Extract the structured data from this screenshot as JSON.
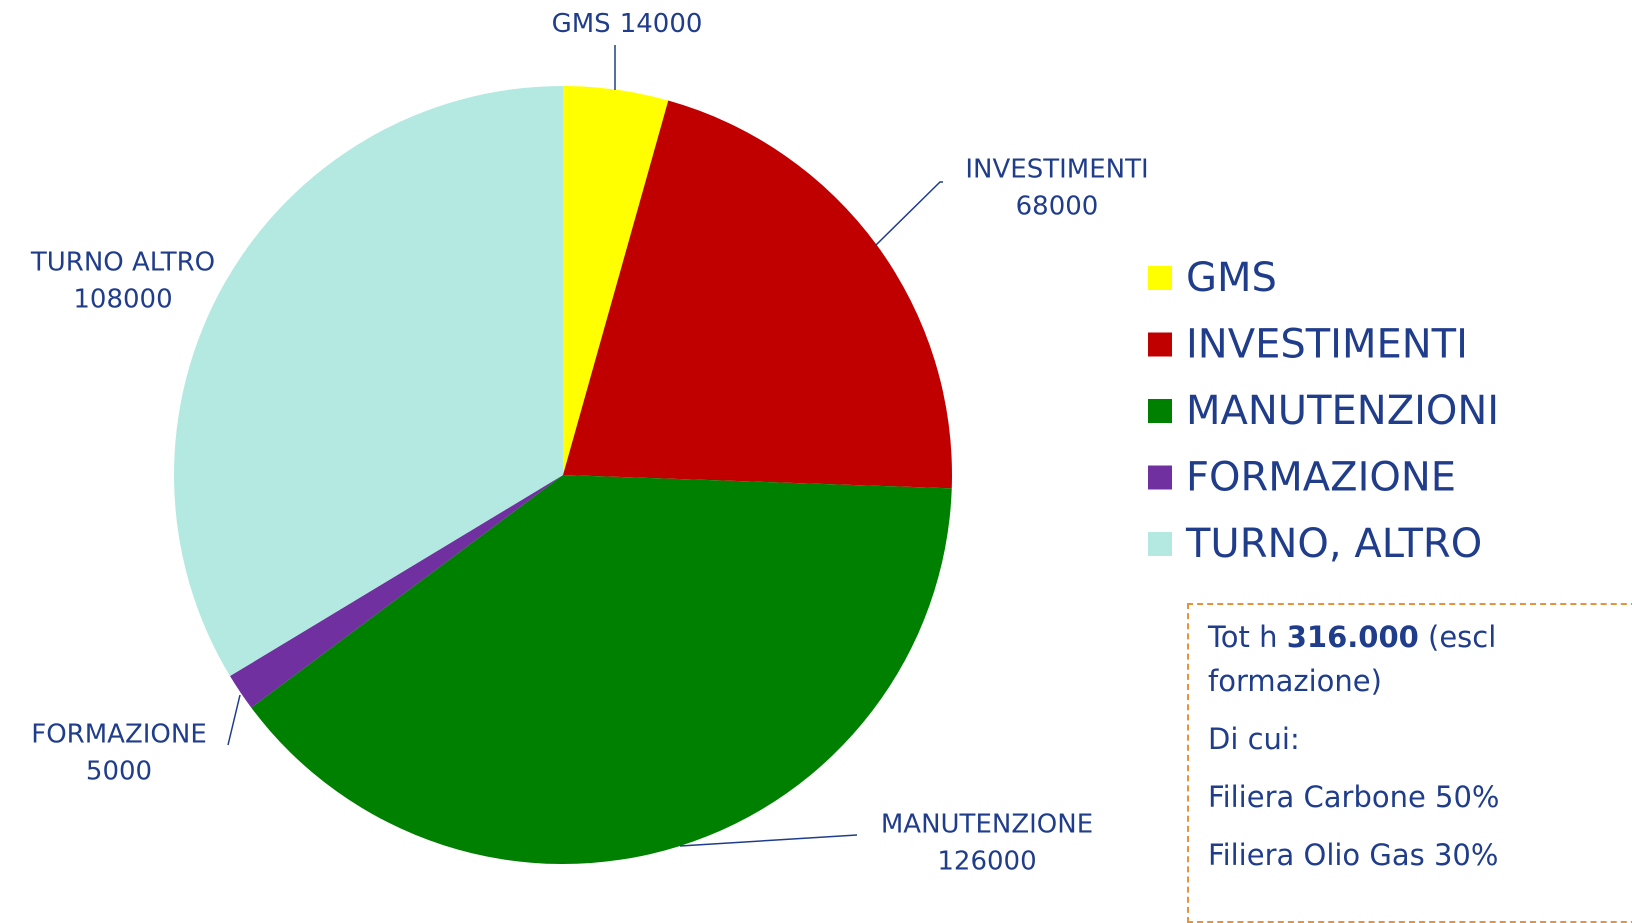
{
  "chart_data": {
    "type": "pie",
    "categories": [
      "GMS",
      "INVESTIMENTI",
      "MANUTENZIONI",
      "FORMAZIONE",
      "TURNO, ALTRO"
    ],
    "label_names": [
      "GMS",
      "INVESTIMENTI",
      "MANUTENZIONE",
      "FORMAZIONE",
      "TURNO ALTRO"
    ],
    "values": [
      14000,
      68000,
      126000,
      5000,
      108000
    ],
    "colors": [
      "#ffff00",
      "#c00000",
      "#008000",
      "#7030a0",
      "#b3e9e1"
    ],
    "legend": "right"
  },
  "note": {
    "total_prefix": "Tot h",
    "total": "316.000",
    "total_suffix": "(escl",
    "total_line2": "formazione)",
    "lines": [
      "Di cui:",
      "Filiera Carbone 50%",
      "Filiera Olio Gas 30%"
    ]
  }
}
